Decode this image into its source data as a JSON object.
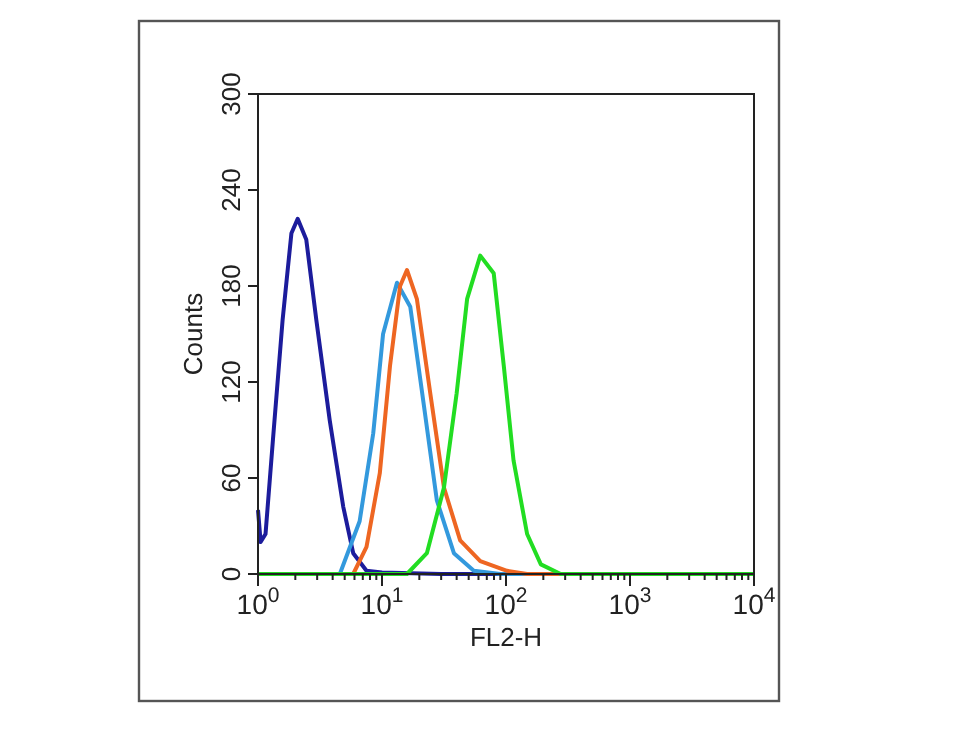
{
  "chart_data": {
    "type": "line",
    "xlabel": "FL2-H",
    "ylabel": "Counts",
    "log": "x",
    "xlim": [
      1,
      10000
    ],
    "ylim": [
      0,
      300
    ],
    "xticks": [
      {
        "value": 1,
        "label": "10$^{0}$"
      },
      {
        "value": 2,
        "label": null
      },
      {
        "value": 3,
        "label": null
      },
      {
        "value": 4,
        "label": null
      },
      {
        "value": 5,
        "label": null
      },
      {
        "value": 6,
        "label": null
      },
      {
        "value": 7,
        "label": null
      },
      {
        "value": 8,
        "label": null
      },
      {
        "value": 9,
        "label": null
      },
      {
        "value": 10,
        "label": "10$^{1}$"
      },
      {
        "value": 20,
        "label": null
      },
      {
        "value": 30,
        "label": null
      },
      {
        "value": 40,
        "label": null
      },
      {
        "value": 50,
        "label": null
      },
      {
        "value": 60,
        "label": null
      },
      {
        "value": 70,
        "label": null
      },
      {
        "value": 80,
        "label": null
      },
      {
        "value": 90,
        "label": null
      },
      {
        "value": 100,
        "label": "10$^{2}$"
      },
      {
        "value": 200,
        "label": null
      },
      {
        "value": 300,
        "label": null
      },
      {
        "value": 400,
        "label": null
      },
      {
        "value": 500,
        "label": null
      },
      {
        "value": 600,
        "label": null
      },
      {
        "value": 700,
        "label": null
      },
      {
        "value": 800,
        "label": null
      },
      {
        "value": 900,
        "label": null
      },
      {
        "value": 1000,
        "label": "10$^{3}$"
      },
      {
        "value": 2000,
        "label": null
      },
      {
        "value": 3000,
        "label": null
      },
      {
        "value": 4000,
        "label": null
      },
      {
        "value": 5000,
        "label": null
      },
      {
        "value": 6000,
        "label": null
      },
      {
        "value": 7000,
        "label": null
      },
      {
        "value": 8000,
        "label": null
      },
      {
        "value": 9000,
        "label": null
      },
      {
        "value": 10000,
        "label": "10$^{4}$"
      }
    ],
    "yticks": [
      0,
      60,
      120,
      180,
      240,
      300
    ],
    "grid": false,
    "marker": "none",
    "line_style": "solid",
    "series": [
      {
        "color": "#1c1c9c",
        "x": [
          1,
          1.05,
          1.15,
          1.32,
          1.58,
          1.86,
          2.09,
          2.45,
          2.95,
          3.79,
          4.87,
          5.86,
          7.5,
          10,
          30,
          100,
          1000,
          10000
        ],
        "values": [
          40,
          20,
          25,
          84,
          159,
          213,
          222,
          209,
          159,
          96,
          42,
          13,
          2,
          1,
          0,
          0,
          0,
          0
        ]
      },
      {
        "color": "#3399dd",
        "x": [
          1,
          4.57,
          6.6,
          8.5,
          10.2,
          13.2,
          16.9,
          21.8,
          27.7,
          38,
          55,
          90,
          10000
        ],
        "values": [
          0,
          0,
          33,
          88,
          150,
          182,
          167,
          105,
          46,
          13,
          2,
          0,
          0
        ]
      },
      {
        "color": "#ee6622",
        "x": [
          1,
          5.86,
          7.5,
          9.6,
          11.6,
          14,
          15.9,
          19.1,
          24.5,
          31.6,
          42.7,
          62,
          102,
          148,
          10000
        ],
        "values": [
          0,
          0,
          17,
          63,
          130,
          180,
          190,
          172,
          113,
          54,
          21,
          8,
          2,
          0,
          0
        ]
      },
      {
        "color": "#22dd22",
        "x": [
          1,
          15.9,
          23,
          31.6,
          40,
          48.6,
          62,
          79.6,
          96,
          115,
          148,
          191,
          276,
          10000
        ],
        "values": [
          0,
          0,
          13,
          54,
          113,
          172,
          199,
          188,
          130,
          71,
          25,
          6,
          0,
          0
        ]
      }
    ]
  }
}
